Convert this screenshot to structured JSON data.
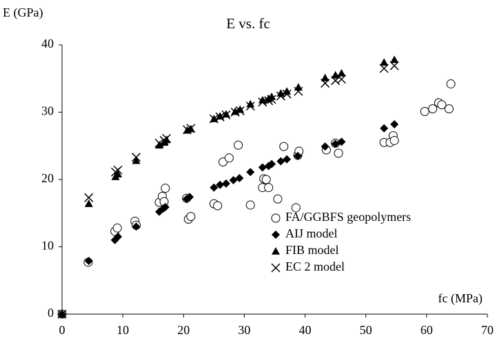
{
  "chart_data": {
    "type": "scatter",
    "title": "E vs. fc",
    "x_label": "fc (MPa)",
    "y_label": "E (GPa)",
    "xlim": [
      0,
      70
    ],
    "xticks": [
      0,
      10,
      20,
      30,
      40,
      50,
      60,
      70
    ],
    "ylim": [
      0,
      40
    ],
    "yticks": [
      0,
      10,
      20,
      30,
      40
    ],
    "grid": false,
    "legend": "lower right",
    "series": [
      {
        "name": "FA/GGBFS geopolymers",
        "marker": "circle",
        "color": "#000000",
        "x": [
          0,
          4.3,
          8.7,
          9.1,
          12,
          12.2,
          16,
          16.5,
          16.8,
          17,
          20.5,
          20.8,
          21.2,
          25,
          25.6,
          26.5,
          27.5,
          29,
          31,
          33,
          33.2,
          33.6,
          34,
          35.5,
          36.5,
          38.5,
          38.8,
          39,
          43.5,
          45,
          45.5,
          53,
          54,
          54.5,
          54.7,
          59.7,
          61,
          62,
          62.5,
          63.7,
          64
        ],
        "values": [
          0,
          7.7,
          12.3,
          12.8,
          13.8,
          13.2,
          16.6,
          17.5,
          16.7,
          18.7,
          17.2,
          14.1,
          14.5,
          16.4,
          16.1,
          22.6,
          23.2,
          25.1,
          16.2,
          18.8,
          20.1,
          20,
          18.8,
          17.1,
          24.9,
          15.8,
          23.6,
          24.2,
          24.4,
          25.4,
          23.9,
          25.5,
          25.5,
          26.5,
          25.8,
          30.1,
          30.5,
          31.4,
          31.1,
          30.5,
          34.2
        ]
      },
      {
        "name": "AIJ model",
        "marker": "diamond",
        "color": "#000000",
        "x": [
          0,
          4.4,
          8.7,
          9.2,
          12.2,
          16,
          16.7,
          17,
          20.5,
          21,
          25,
          26,
          27,
          28.2,
          29.2,
          31,
          33,
          34,
          34.5,
          36,
          37,
          38.8,
          43.3,
          45,
          46,
          53,
          54.7
        ],
        "values": [
          0,
          7.9,
          11,
          11.5,
          13,
          15.2,
          15.7,
          15.9,
          17.1,
          17.4,
          18.8,
          19.2,
          19.4,
          19.9,
          20.2,
          21.1,
          21.8,
          22,
          22.3,
          22.7,
          23,
          23.5,
          24.9,
          25.3,
          25.6,
          27.6,
          28.2
        ]
      },
      {
        "name": "FIB model",
        "marker": "triangle",
        "color": "#000000",
        "x": [
          0,
          4.4,
          8.8,
          9.2,
          12.2,
          16,
          16.8,
          17.2,
          20.6,
          21.2,
          25,
          26,
          27,
          28.5,
          29.3,
          31,
          33,
          34,
          34.5,
          36,
          37,
          38.9,
          43.3,
          45,
          46,
          53,
          54.7
        ],
        "values": [
          0,
          16.4,
          20.4,
          20.8,
          22.8,
          25.1,
          25.5,
          25.9,
          27.3,
          27.5,
          29,
          29.4,
          29.7,
          30.1,
          30.4,
          31.2,
          31.8,
          32,
          32.3,
          32.8,
          33.1,
          33.7,
          35.1,
          35.5,
          35.8,
          37.4,
          37.8
        ]
      },
      {
        "name": "EC 2 model",
        "marker": "cross",
        "color": "#000000",
        "x": [
          0,
          4.4,
          8.8,
          9.2,
          12.2,
          16,
          16.8,
          17.2,
          20.6,
          21.2,
          25,
          26,
          27,
          28.5,
          29.3,
          31,
          33,
          34,
          34.5,
          36,
          37,
          38.9,
          43.3,
          45,
          46,
          53,
          54.7
        ],
        "values": [
          0,
          17.3,
          21.1,
          21.4,
          23.3,
          25.4,
          25.8,
          26.1,
          27.4,
          27.6,
          29,
          29.3,
          29.6,
          30,
          30.2,
          30.9,
          31.5,
          31.7,
          31.9,
          32.4,
          32.7,
          33.1,
          34.3,
          34.7,
          34.9,
          36.5,
          36.9
        ]
      }
    ]
  }
}
